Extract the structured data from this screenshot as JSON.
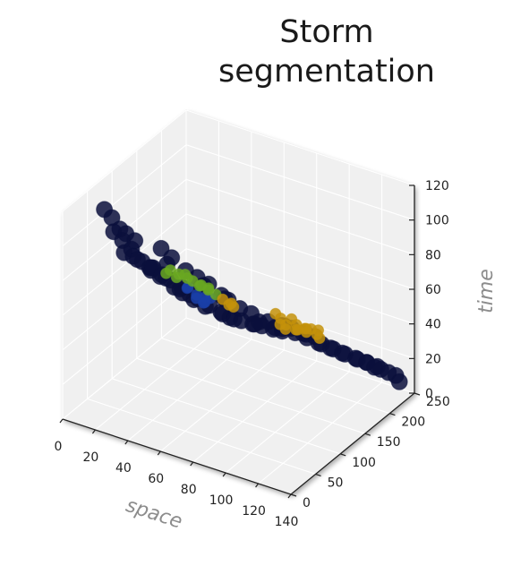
{
  "title_lines": [
    "Storm",
    "segmentation"
  ],
  "chart_data": {
    "type": "scatter",
    "projection": "3d",
    "title": "Storm segmentation",
    "xlabel": "space",
    "ylabel": "",
    "zlabel": "time",
    "xlim": [
      0,
      140
    ],
    "ylim": [
      0,
      250
    ],
    "zlim": [
      0,
      120
    ],
    "xticks": [
      "0",
      "20",
      "40",
      "60",
      "80",
      "100",
      "120",
      "140"
    ],
    "yticks": [
      "0",
      "50",
      "100",
      "150",
      "200",
      "250"
    ],
    "zticks": [
      "0",
      "20",
      "40",
      "60",
      "80",
      "100",
      "120"
    ],
    "grid": true,
    "pane_color": "#f0f0f0",
    "series": [
      {
        "color": "#0a0f3c",
        "points": [
          [
            8,
            58,
            110
          ],
          [
            12,
            60,
            106
          ],
          [
            16,
            63,
            100
          ],
          [
            10,
            70,
            95
          ],
          [
            14,
            75,
            90
          ],
          [
            18,
            80,
            85
          ],
          [
            12,
            85,
            80
          ],
          [
            16,
            90,
            78
          ],
          [
            20,
            95,
            75
          ],
          [
            24,
            100,
            70
          ],
          [
            14,
            105,
            72
          ],
          [
            20,
            110,
            68
          ],
          [
            18,
            120,
            65
          ],
          [
            22,
            125,
            60
          ],
          [
            16,
            130,
            62
          ],
          [
            20,
            135,
            58
          ],
          [
            24,
            140,
            55
          ],
          [
            28,
            145,
            50
          ],
          [
            18,
            150,
            52
          ],
          [
            26,
            155,
            48
          ],
          [
            20,
            160,
            45
          ],
          [
            28,
            165,
            42
          ],
          [
            22,
            170,
            40
          ],
          [
            30,
            175,
            38
          ],
          [
            26,
            180,
            35
          ],
          [
            34,
            185,
            33
          ],
          [
            30,
            190,
            30
          ],
          [
            38,
            195,
            28
          ],
          [
            42,
            200,
            25
          ],
          [
            36,
            205,
            24
          ],
          [
            46,
            210,
            22
          ],
          [
            40,
            215,
            20
          ],
          [
            50,
            220,
            19
          ],
          [
            54,
            225,
            18
          ],
          [
            48,
            230,
            16
          ],
          [
            58,
            235,
            15
          ],
          [
            62,
            240,
            14
          ],
          [
            56,
            245,
            13
          ],
          [
            30,
            150,
            60
          ],
          [
            34,
            160,
            55
          ],
          [
            38,
            170,
            50
          ],
          [
            32,
            180,
            45
          ],
          [
            44,
            190,
            38
          ],
          [
            48,
            200,
            32
          ],
          [
            52,
            210,
            28
          ],
          [
            60,
            218,
            24
          ],
          [
            66,
            225,
            22
          ],
          [
            70,
            232,
            20
          ],
          [
            64,
            238,
            18
          ],
          [
            74,
            242,
            16
          ],
          [
            80,
            246,
            15
          ],
          [
            78,
            236,
            18
          ],
          [
            86,
            240,
            14
          ],
          [
            92,
            244,
            12
          ],
          [
            98,
            248,
            10
          ],
          [
            104,
            250,
            9
          ],
          [
            110,
            252,
            8
          ],
          [
            116,
            254,
            7
          ],
          [
            112,
            246,
            10
          ],
          [
            120,
            248,
            8
          ],
          [
            124,
            250,
            7
          ],
          [
            128,
            252,
            6
          ],
          [
            108,
            240,
            12
          ],
          [
            100,
            236,
            14
          ],
          [
            94,
            232,
            16
          ],
          [
            88,
            228,
            18
          ],
          [
            82,
            224,
            20
          ],
          [
            76,
            220,
            22
          ],
          [
            70,
            214,
            24
          ],
          [
            24,
            120,
            78
          ],
          [
            28,
            128,
            72
          ],
          [
            10,
            95,
            88
          ],
          [
            14,
            100,
            84
          ],
          [
            24,
            132,
            66
          ],
          [
            36,
            162,
            50
          ],
          [
            44,
            176,
            44
          ],
          [
            40,
            196,
            36
          ],
          [
            58,
            206,
            26
          ],
          [
            132,
            246,
            5
          ],
          [
            118,
            242,
            10
          ]
        ]
      },
      {
        "color": "#1a3fa8",
        "points": [
          [
            40,
            120,
            60
          ],
          [
            44,
            126,
            56
          ],
          [
            48,
            130,
            55
          ],
          [
            42,
            132,
            52
          ],
          [
            46,
            136,
            50
          ],
          [
            38,
            128,
            58
          ],
          [
            44,
            140,
            48
          ],
          [
            50,
            134,
            54
          ]
        ]
      },
      {
        "color": "#6aa821",
        "points": [
          [
            60,
            20,
            100
          ],
          [
            64,
            24,
            98
          ],
          [
            68,
            28,
            96
          ],
          [
            62,
            26,
            95
          ],
          [
            70,
            32,
            94
          ],
          [
            74,
            36,
            92
          ],
          [
            66,
            30,
            97
          ],
          [
            72,
            40,
            90
          ],
          [
            76,
            44,
            88
          ],
          [
            78,
            38,
            91
          ],
          [
            58,
            18,
            98
          ],
          [
            80,
            46,
            86
          ]
        ]
      },
      {
        "color": "#c4920a",
        "points": [
          [
            80,
            60,
            80
          ],
          [
            84,
            64,
            78
          ],
          [
            82,
            66,
            76
          ],
          [
            86,
            62,
            77
          ],
          [
            100,
            110,
            60
          ],
          [
            108,
            116,
            58
          ],
          [
            104,
            120,
            62
          ],
          [
            112,
            124,
            56
          ],
          [
            96,
            114,
            64
          ],
          [
            116,
            120,
            60
          ],
          [
            110,
            110,
            63
          ],
          [
            106,
            126,
            55
          ],
          [
            118,
            128,
            58
          ],
          [
            100,
            122,
            57
          ],
          [
            114,
            114,
            61
          ],
          [
            120,
            124,
            55
          ],
          [
            104,
            108,
            59
          ],
          [
            110,
            130,
            56
          ],
          [
            98,
            118,
            61
          ],
          [
            116,
            132,
            54
          ]
        ]
      }
    ]
  }
}
